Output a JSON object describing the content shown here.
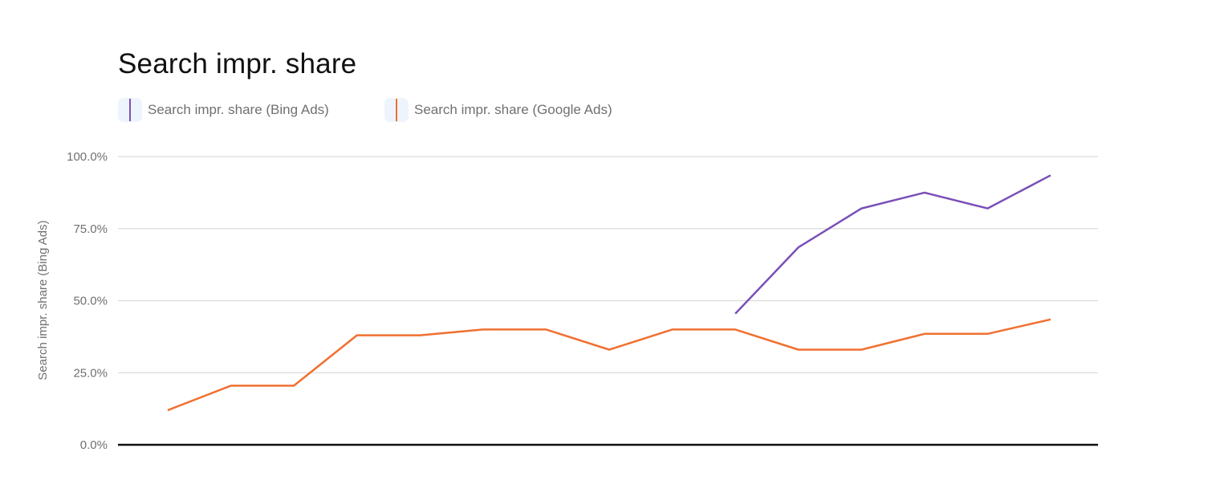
{
  "chart_data": {
    "type": "line",
    "title": "Search impr. share",
    "ylabel": "Search impr. share (Bing Ads)",
    "xlabel": "",
    "ylim": [
      0,
      100
    ],
    "yticks": [
      "0.0%",
      "25.0%",
      "50.0%",
      "75.0%",
      "100.0%"
    ],
    "ytick_values": [
      0,
      25,
      50,
      75,
      100
    ],
    "grid": true,
    "legend_position": "top-left",
    "x": [
      1,
      2,
      3,
      4,
      5,
      6,
      7,
      8,
      9,
      10,
      11,
      12,
      13,
      14,
      15
    ],
    "series": [
      {
        "name": "Search impr. share (Bing Ads)",
        "color": "#7b4fb8",
        "values": [
          null,
          null,
          null,
          null,
          null,
          null,
          null,
          null,
          null,
          45.5,
          68.5,
          82,
          87.5,
          82,
          93.5
        ]
      },
      {
        "name": "Search impr. share (Google Ads)",
        "color": "#f07030",
        "values": [
          12,
          20.5,
          20.5,
          38,
          38,
          40,
          40,
          33,
          40,
          40,
          33,
          33,
          38.5,
          38.5,
          43.5
        ]
      }
    ]
  }
}
